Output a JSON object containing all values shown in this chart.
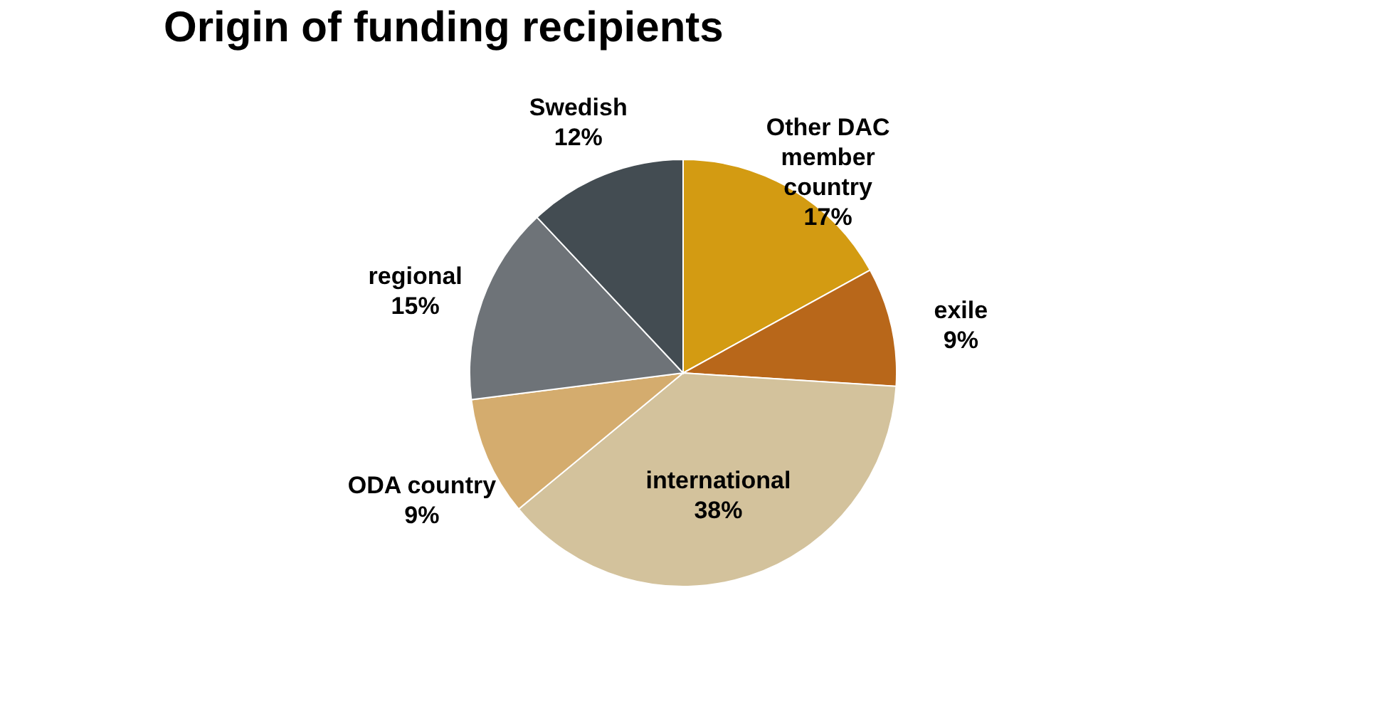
{
  "chart_data": {
    "type": "pie",
    "title": "Origin of funding recipients",
    "categories": [
      "Other DAC member country",
      "exile",
      "international",
      "ODA country",
      "regional",
      "Swedish"
    ],
    "values": [
      17,
      9,
      38,
      9,
      15,
      12
    ],
    "value_labels": [
      "17%",
      "9%",
      "38%",
      "9%",
      "15%",
      "12%"
    ],
    "colors": [
      "#d39b12",
      "#b8671a",
      "#d3c29c",
      "#d4ac6e",
      "#6e7378",
      "#434c52"
    ],
    "legend": false
  }
}
